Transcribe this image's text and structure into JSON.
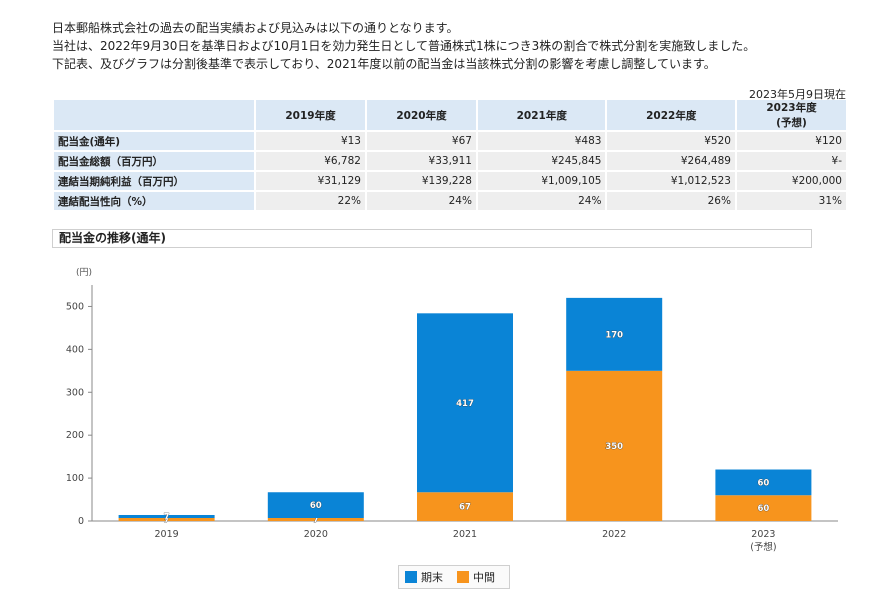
{
  "intro": [
    "日本郵船株式会社の過去の配当実績および見込みは以下の通りとなります。",
    "当社は、2022年9月30日を基準日および10月1日を効力発生日として普通株式1株につき3株の割合で株式分割を実施致しました。",
    "下記表、及びグラフは分割後基準で表示しており、2021年度以前の配当金は当該株式分割の影響を考慮し調整しています。"
  ],
  "as_of": "2023年5月9日現在",
  "table": {
    "headers": [
      "2019年度",
      "2020年度",
      "2021年度",
      "2022年度",
      "2023年度",
      "(予想)"
    ],
    "rows": [
      {
        "label": "配当金(通年)",
        "values": [
          "¥13",
          "¥67",
          "¥483",
          "¥520",
          "¥120"
        ]
      },
      {
        "label": "配当金総額（百万円）",
        "values": [
          "¥6,782",
          "¥33,911",
          "¥245,845",
          "¥264,489",
          "¥-"
        ]
      },
      {
        "label": "連結当期純利益（百万円）",
        "values": [
          "¥31,129",
          "¥139,228",
          "¥1,009,105",
          "¥1,012,523",
          "¥200,000"
        ]
      },
      {
        "label": "連結配当性向（%）",
        "values": [
          "22%",
          "24%",
          "24%",
          "26%",
          "31%"
        ]
      }
    ]
  },
  "section_title": "配当金の推移(通年)",
  "chart_data": {
    "type": "bar",
    "stacked": true,
    "unit_label": "(円)",
    "categories": [
      "2019",
      "2020",
      "2021",
      "2022",
      "2023"
    ],
    "category_sublabels": [
      "",
      "",
      "",
      "",
      "(予想)"
    ],
    "series": [
      {
        "name": "中間",
        "color": "#f7941d",
        "values": [
          7,
          7,
          67,
          350,
          60
        ]
      },
      {
        "name": "期末",
        "color": "#0a84d6",
        "values": [
          7,
          60,
          417,
          170,
          60
        ]
      }
    ],
    "ylim": [
      0,
      550
    ],
    "yticks": [
      0,
      100,
      200,
      300,
      400,
      500
    ],
    "grid": false,
    "legend_position": "bottom"
  },
  "legend": [
    {
      "name": "期末",
      "color": "#0a84d6"
    },
    {
      "name": "中間",
      "color": "#f7941d"
    }
  ]
}
